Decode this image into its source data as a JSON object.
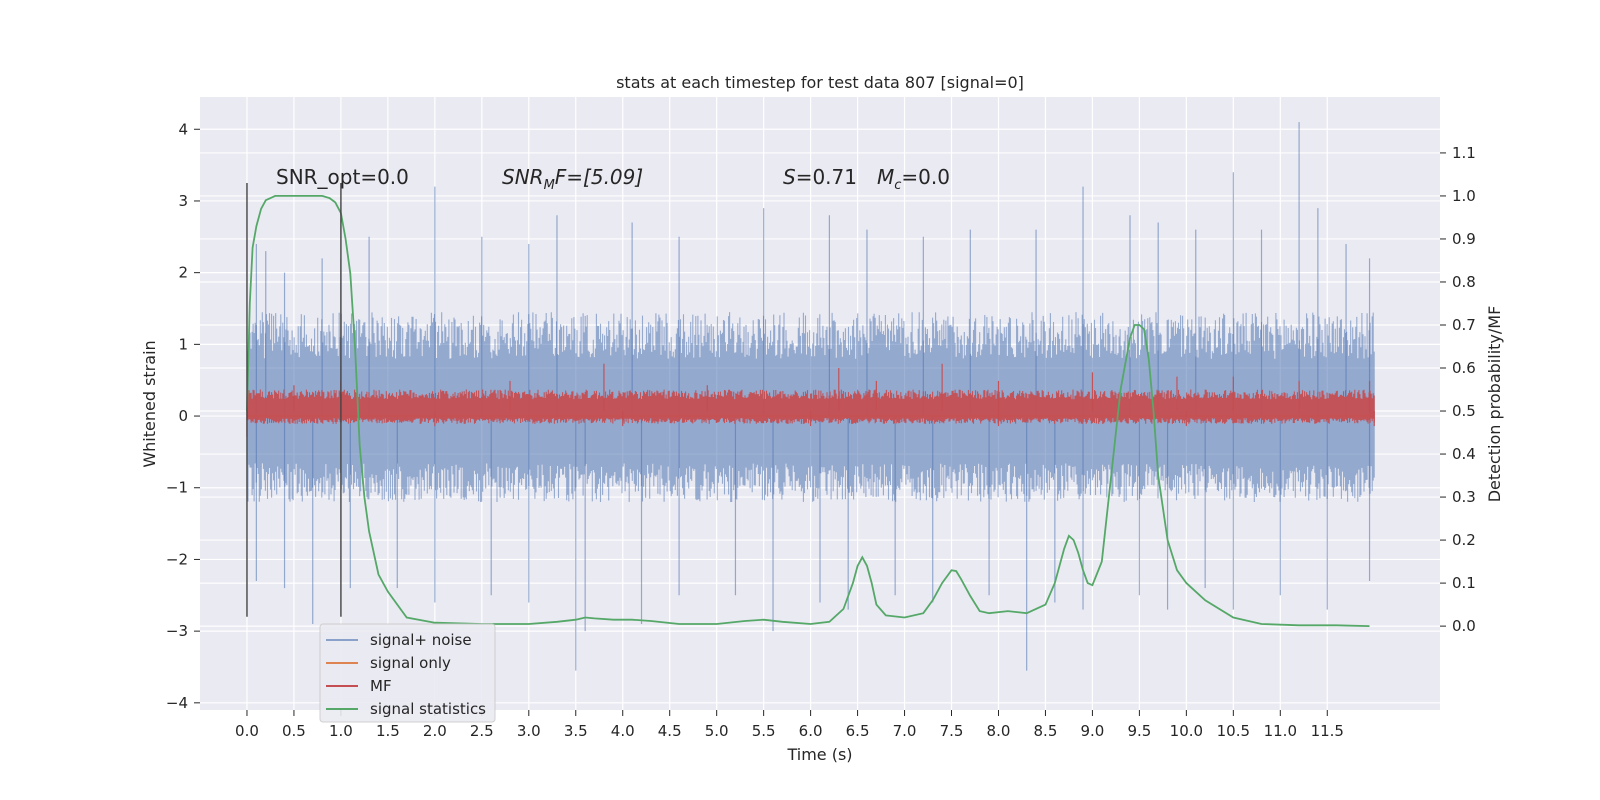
{
  "chart_data": {
    "type": "line",
    "title": "stats at each timestep for test data 807 [signal=0]",
    "xlabel": "Time (s)",
    "ylabel": "Whitened strain",
    "ylabel_right": "Detection probability/MF",
    "xlim": [
      -0.5,
      12.7
    ],
    "ylim": [
      -4.1,
      4.45
    ],
    "ylim_right": [
      -0.195,
      1.23
    ],
    "grid": true,
    "legend_position": "lower-left",
    "x_tick_labels": [
      "0.0",
      "0.5",
      "1.0",
      "1.5",
      "2.0",
      "2.5",
      "3.0",
      "3.5",
      "4.0",
      "4.5",
      "5.0",
      "5.5",
      "6.0",
      "6.5",
      "7.0",
      "7.5",
      "8.0",
      "8.5",
      "9.0",
      "9.5",
      "10.0",
      "10.5",
      "11.0",
      "11.5"
    ],
    "y_tick_labels": [
      "4",
      "3",
      "2",
      "1",
      "0",
      "−1",
      "−2",
      "−3",
      "−4"
    ],
    "y_right_tick_labels": [
      "1.1",
      "1.0",
      "0.9",
      "0.8",
      "0.7",
      "0.6",
      "0.5",
      "0.4",
      "0.3",
      "0.2",
      "0.1",
      "0.0"
    ],
    "annotations": {
      "snr_opt": "SNR_opt=0.0",
      "snr_mf_main": "SNR",
      "snr_mf_sub": "M",
      "snr_mf_rest": "F=[5.09]",
      "s_main": "S",
      "s_rest": "=0.71",
      "mc_main": "M",
      "mc_sub": "c",
      "mc_rest": "=0.0"
    },
    "vertical_markers": [
      {
        "x": 0.0,
        "y_range": [
          -2.8,
          3.25
        ]
      },
      {
        "x": 1.0,
        "y_range": [
          -2.8,
          3.25
        ]
      }
    ],
    "series": [
      {
        "name": "signal+ noise",
        "color": "#4c72b0",
        "axis": "left",
        "style": "noise-band",
        "x_range": [
          0.0,
          12.0
        ],
        "dense_band": [
          -1.2,
          1.45
        ],
        "spikes_up": [
          [
            0.1,
            2.4
          ],
          [
            0.2,
            2.3
          ],
          [
            0.4,
            2.0
          ],
          [
            0.8,
            2.2
          ],
          [
            1.0,
            2.2
          ],
          [
            1.3,
            2.5
          ],
          [
            2.0,
            3.2
          ],
          [
            2.5,
            2.5
          ],
          [
            3.0,
            2.4
          ],
          [
            3.3,
            2.8
          ],
          [
            4.1,
            2.7
          ],
          [
            4.6,
            2.5
          ],
          [
            5.5,
            2.9
          ],
          [
            6.2,
            2.8
          ],
          [
            6.6,
            2.6
          ],
          [
            7.2,
            2.5
          ],
          [
            7.7,
            2.6
          ],
          [
            8.4,
            2.6
          ],
          [
            8.9,
            3.2
          ],
          [
            9.4,
            2.8
          ],
          [
            9.7,
            2.7
          ],
          [
            10.1,
            2.6
          ],
          [
            10.5,
            3.4
          ],
          [
            10.8,
            2.6
          ],
          [
            11.2,
            4.1
          ],
          [
            11.4,
            2.9
          ],
          [
            11.7,
            2.4
          ],
          [
            11.95,
            2.2
          ]
        ],
        "spikes_down": [
          [
            0.1,
            -2.3
          ],
          [
            0.4,
            -2.4
          ],
          [
            0.7,
            -2.9
          ],
          [
            1.1,
            -2.4
          ],
          [
            1.6,
            -2.4
          ],
          [
            2.0,
            -2.6
          ],
          [
            2.6,
            -2.5
          ],
          [
            3.0,
            -2.6
          ],
          [
            3.5,
            -3.55
          ],
          [
            3.6,
            -3.0
          ],
          [
            4.2,
            -2.9
          ],
          [
            4.6,
            -2.5
          ],
          [
            5.2,
            -2.5
          ],
          [
            5.6,
            -3.0
          ],
          [
            6.1,
            -2.6
          ],
          [
            6.4,
            -2.7
          ],
          [
            6.9,
            -2.5
          ],
          [
            7.3,
            -2.6
          ],
          [
            7.9,
            -2.5
          ],
          [
            8.3,
            -3.55
          ],
          [
            8.6,
            -2.6
          ],
          [
            8.9,
            -2.7
          ],
          [
            9.5,
            -2.5
          ],
          [
            9.8,
            -2.7
          ],
          [
            10.2,
            -2.4
          ],
          [
            10.5,
            -2.7
          ],
          [
            11.0,
            -2.5
          ],
          [
            11.5,
            -2.7
          ],
          [
            11.95,
            -2.3
          ]
        ]
      },
      {
        "name": "signal only",
        "color": "#dd8452",
        "axis": "left",
        "style": "line",
        "x": [
          0.0,
          12.0
        ],
        "y": [
          0.0,
          0.0
        ]
      },
      {
        "name": "MF",
        "color": "#c44e52",
        "axis": "right",
        "style": "noise-band",
        "x_range": [
          0.0,
          12.0
        ],
        "dense_band": [
          0.47,
          0.55
        ],
        "baseline": 0.5,
        "spikes_up": [
          [
            0.5,
            0.56
          ],
          [
            1.0,
            0.57
          ],
          [
            2.8,
            0.57
          ],
          [
            3.8,
            0.61
          ],
          [
            4.9,
            0.56
          ],
          [
            6.3,
            0.6
          ],
          [
            6.7,
            0.57
          ],
          [
            7.4,
            0.61
          ],
          [
            8.0,
            0.57
          ],
          [
            9.0,
            0.59
          ],
          [
            9.9,
            0.58
          ],
          [
            10.5,
            0.58
          ],
          [
            11.2,
            0.57
          ],
          [
            11.95,
            0.57
          ]
        ],
        "spikes_down": [
          [
            0.0,
            0.44
          ],
          [
            2.0,
            0.465
          ],
          [
            4.0,
            0.465
          ],
          [
            6.0,
            0.465
          ],
          [
            8.0,
            0.465
          ],
          [
            10.0,
            0.465
          ],
          [
            12.0,
            0.465
          ]
        ]
      },
      {
        "name": "signal statistics",
        "color": "#55a868",
        "axis": "right",
        "style": "line",
        "x": [
          0.0,
          0.03,
          0.06,
          0.1,
          0.15,
          0.2,
          0.3,
          0.5,
          0.7,
          0.8,
          0.88,
          0.94,
          1.0,
          1.05,
          1.1,
          1.15,
          1.2,
          1.25,
          1.3,
          1.4,
          1.5,
          1.7,
          2.0,
          2.5,
          3.0,
          3.3,
          3.5,
          3.6,
          3.7,
          3.9,
          4.1,
          4.3,
          4.6,
          5.0,
          5.3,
          5.5,
          5.7,
          6.0,
          6.2,
          6.35,
          6.45,
          6.5,
          6.55,
          6.6,
          6.65,
          6.7,
          6.8,
          7.0,
          7.2,
          7.3,
          7.4,
          7.5,
          7.55,
          7.6,
          7.7,
          7.8,
          7.9,
          8.1,
          8.3,
          8.5,
          8.6,
          8.7,
          8.75,
          8.8,
          8.85,
          8.9,
          8.95,
          9.0,
          9.1,
          9.2,
          9.3,
          9.4,
          9.45,
          9.5,
          9.55,
          9.6,
          9.65,
          9.7,
          9.8,
          9.9,
          10.0,
          10.2,
          10.5,
          10.8,
          11.2,
          11.6,
          11.95
        ],
        "y": [
          0.5,
          0.75,
          0.88,
          0.93,
          0.97,
          0.99,
          1.0,
          1.0,
          1.0,
          1.0,
          0.995,
          0.985,
          0.96,
          0.9,
          0.82,
          0.65,
          0.42,
          0.3,
          0.22,
          0.12,
          0.08,
          0.02,
          0.008,
          0.005,
          0.005,
          0.01,
          0.015,
          0.02,
          0.018,
          0.015,
          0.015,
          0.012,
          0.005,
          0.005,
          0.012,
          0.015,
          0.01,
          0.005,
          0.01,
          0.04,
          0.1,
          0.14,
          0.16,
          0.14,
          0.1,
          0.05,
          0.025,
          0.02,
          0.03,
          0.06,
          0.1,
          0.13,
          0.128,
          0.11,
          0.07,
          0.035,
          0.03,
          0.035,
          0.03,
          0.05,
          0.1,
          0.18,
          0.21,
          0.2,
          0.17,
          0.13,
          0.1,
          0.095,
          0.15,
          0.35,
          0.55,
          0.67,
          0.7,
          0.7,
          0.69,
          0.62,
          0.5,
          0.35,
          0.2,
          0.13,
          0.1,
          0.06,
          0.02,
          0.005,
          0.002,
          0.002,
          0.0
        ]
      }
    ]
  }
}
